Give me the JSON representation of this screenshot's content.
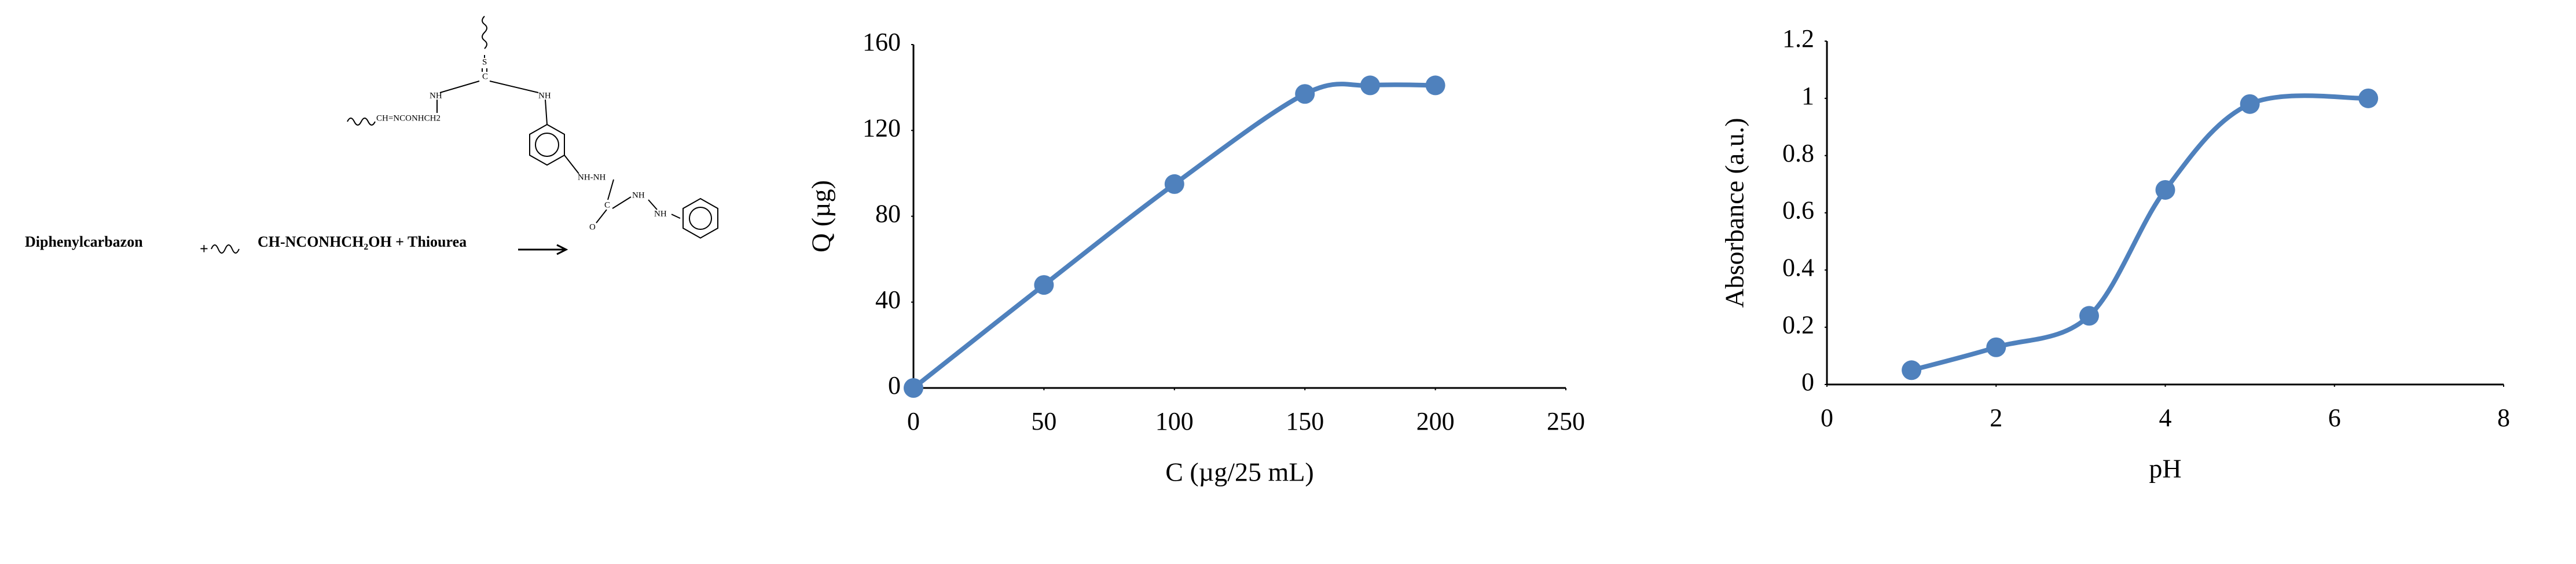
{
  "scheme": {
    "reagent": "Diphenylcarbazon",
    "plus": "+",
    "reaction": "CH-NCONHCH₂OH + Thiourea",
    "labels": [
      "S",
      "C",
      "NH",
      "NH",
      "CH=NCONHCH2",
      "NH-NH",
      "C",
      "O",
      "NH",
      "NH"
    ]
  },
  "chart_data": [
    {
      "type": "line",
      "x_label": "C (µg/25 mL)",
      "y_label": "Q (µg)",
      "x": [
        0,
        50,
        100,
        150,
        175,
        200
      ],
      "series": [
        {
          "color": "#4f81bd",
          "values": [
            0,
            48,
            95,
            137,
            141,
            141
          ]
        }
      ],
      "xlim": [
        0,
        250
      ],
      "xticks": [
        0,
        50,
        100,
        150,
        200,
        250
      ],
      "ylim": [
        0,
        160
      ],
      "yticks": [
        0,
        40,
        80,
        120,
        160
      ],
      "smooth": true,
      "markers": true
    },
    {
      "type": "line",
      "x_label": "pH",
      "y_label": "Absorbance (a.u.)",
      "x": [
        1,
        2,
        3.1,
        4,
        5,
        6.4
      ],
      "series": [
        {
          "color": "#4f81bd",
          "values": [
            0.05,
            0.13,
            0.24,
            0.68,
            0.98,
            1
          ]
        }
      ],
      "xlim": [
        0,
        8
      ],
      "xticks": [
        0,
        2,
        4,
        6,
        8
      ],
      "ylim": [
        0,
        1.2
      ],
      "yticks": [
        0,
        0.2,
        0.4,
        0.6,
        0.8,
        1,
        1.2
      ],
      "smooth": true,
      "markers": true
    }
  ]
}
